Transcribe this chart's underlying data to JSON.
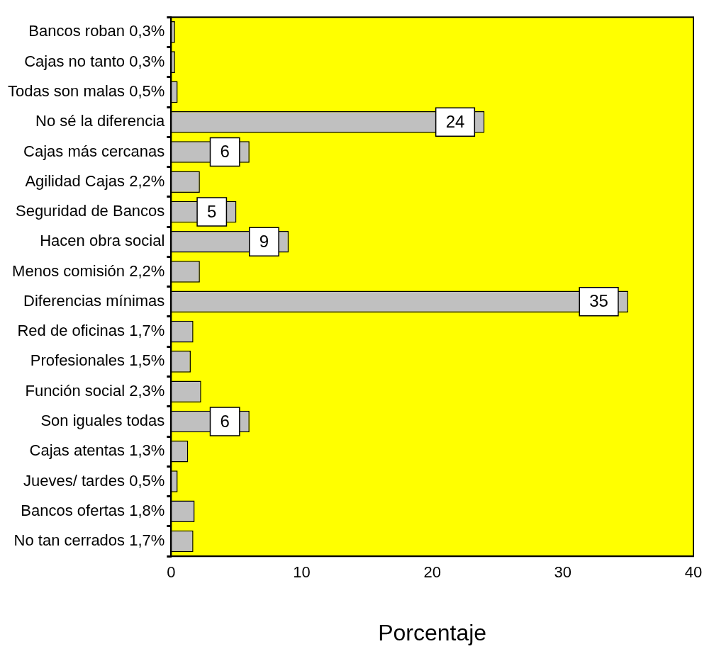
{
  "chart_data": {
    "type": "bar",
    "orientation": "horizontal",
    "xlabel": "Porcentaje",
    "categories": [
      "Bancos roban 0,3%",
      "Cajas no tanto 0,3%",
      "Todas son malas 0,5%",
      "No sé la diferencia",
      "Cajas más cercanas",
      "Agilidad Cajas 2,2%",
      "Seguridad de Bancos",
      "Hacen obra social",
      "Menos comisión 2,2%",
      "Diferencias mínimas",
      "Red de oficinas 1,7%",
      "Profesionales 1,5%",
      "Función social 2,3%",
      "Son iguales todas",
      "Cajas atentas 1,3%",
      "Jueves/ tardes 0,5%",
      "Bancos ofertas 1,8%",
      "No tan cerrados 1,7%"
    ],
    "values": [
      0.3,
      0.3,
      0.5,
      24,
      6,
      2.2,
      5,
      9,
      2.2,
      35,
      1.7,
      1.5,
      2.3,
      6,
      1.3,
      0.5,
      1.8,
      1.7
    ],
    "value_labels": [
      null,
      null,
      null,
      "24",
      "6",
      null,
      "5",
      "9",
      null,
      "35",
      null,
      null,
      null,
      "6",
      null,
      null,
      null,
      null
    ],
    "color": "#c0c0c0",
    "xlim": [
      0,
      40
    ],
    "xticks": [
      0,
      10,
      20,
      30,
      40
    ],
    "grid": false,
    "legend": false
  }
}
